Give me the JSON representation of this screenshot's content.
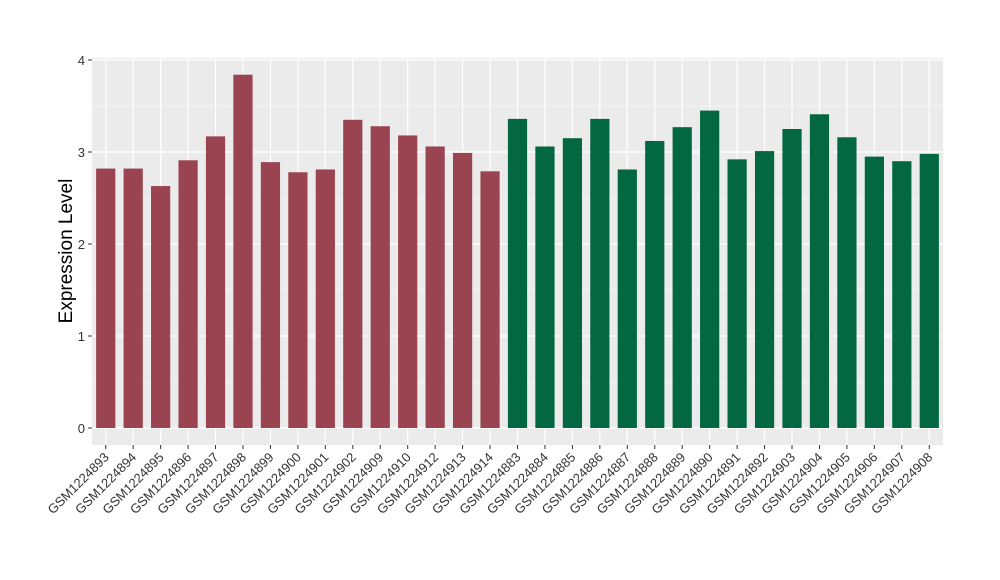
{
  "chart_data": {
    "type": "bar",
    "title": "",
    "xlabel": "",
    "ylabel": "Expression Level",
    "ylim": [
      0,
      4
    ],
    "yticks": [
      0,
      1,
      2,
      3,
      4
    ],
    "grid": true,
    "legend": "none",
    "categories": [
      "GSM1224893",
      "GSM1224894",
      "GSM1224895",
      "GSM1224896",
      "GSM1224897",
      "GSM1224898",
      "GSM1224899",
      "GSM1224900",
      "GSM1224901",
      "GSM1224902",
      "GSM1224909",
      "GSM1224910",
      "GSM1224912",
      "GSM1224913",
      "GSM1224914",
      "GSM1224883",
      "GSM1224884",
      "GSM1224885",
      "GSM1224886",
      "GSM1224887",
      "GSM1224888",
      "GSM1224889",
      "GSM1224890",
      "GSM1224891",
      "GSM1224892",
      "GSM1224903",
      "GSM1224904",
      "GSM1224905",
      "GSM1224906",
      "GSM1224907",
      "GSM1224908"
    ],
    "values": [
      2.82,
      2.82,
      2.63,
      2.91,
      3.17,
      3.84,
      2.89,
      2.78,
      2.81,
      3.35,
      3.28,
      3.18,
      3.06,
      2.99,
      2.79,
      3.36,
      3.06,
      3.15,
      3.36,
      2.81,
      3.12,
      3.27,
      3.45,
      2.92,
      3.01,
      3.25,
      3.41,
      3.16,
      2.95,
      2.9,
      2.98
    ],
    "group_sizes": [
      15,
      16
    ],
    "colors": [
      "#9b4451",
      "#036842"
    ],
    "panel_color": "#ebebeb",
    "grid_color": "#ffffff"
  }
}
